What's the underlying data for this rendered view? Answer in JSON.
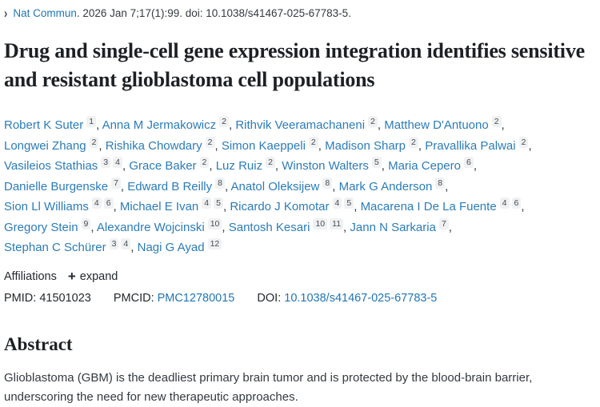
{
  "journal_line": {
    "journal": "Nat Commun",
    "citation": ". 2026 Jan 7;17(1):99. doi: 10.1038/s41467-025-67783-5."
  },
  "icons": {
    "chevron": "›",
    "plus": "+"
  },
  "title": "Drug and single-cell gene expression integration identifies sensitive and resistant glioblastoma cell populations",
  "authors": [
    {
      "name": "Robert K Suter",
      "sups": [
        "1"
      ]
    },
    {
      "name": "Anna M Jermakowicz",
      "sups": [
        "2"
      ]
    },
    {
      "name": "Rithvik Veeramachaneni",
      "sups": [
        "2"
      ]
    },
    {
      "name": "Matthew D'Antuono",
      "sups": [
        "2"
      ]
    },
    {
      "name": "Longwei Zhang",
      "sups": [
        "2"
      ]
    },
    {
      "name": "Rishika Chowdary",
      "sups": [
        "2"
      ]
    },
    {
      "name": "Simon Kaeppeli",
      "sups": [
        "2"
      ]
    },
    {
      "name": "Madison Sharp",
      "sups": [
        "2"
      ]
    },
    {
      "name": "Pravallika Palwai",
      "sups": [
        "2"
      ]
    },
    {
      "name": "Vasileios Stathias",
      "sups": [
        "3",
        "4"
      ]
    },
    {
      "name": "Grace Baker",
      "sups": [
        "2"
      ]
    },
    {
      "name": "Luz Ruiz",
      "sups": [
        "2"
      ]
    },
    {
      "name": "Winston Walters",
      "sups": [
        "5"
      ]
    },
    {
      "name": "Maria Cepero",
      "sups": [
        "6"
      ]
    },
    {
      "name": "Danielle Burgenske",
      "sups": [
        "7"
      ]
    },
    {
      "name": "Edward B Reilly",
      "sups": [
        "8"
      ]
    },
    {
      "name": "Anatol Oleksijew",
      "sups": [
        "8"
      ]
    },
    {
      "name": "Mark G Anderson",
      "sups": [
        "8"
      ]
    },
    {
      "name": "Sion Ll Williams",
      "sups": [
        "4",
        "6"
      ]
    },
    {
      "name": "Michael E Ivan",
      "sups": [
        "4",
        "5"
      ]
    },
    {
      "name": "Ricardo J Komotar",
      "sups": [
        "4",
        "5"
      ]
    },
    {
      "name": "Macarena I De La Fuente",
      "sups": [
        "4",
        "6"
      ]
    },
    {
      "name": "Gregory Stein",
      "sups": [
        "9"
      ]
    },
    {
      "name": "Alexandre Wojcinski",
      "sups": [
        "10"
      ]
    },
    {
      "name": "Santosh Kesari",
      "sups": [
        "10",
        "11"
      ]
    },
    {
      "name": "Jann N Sarkaria",
      "sups": [
        "7"
      ]
    },
    {
      "name": "Stephan C Schürer",
      "sups": [
        "3",
        "4"
      ]
    },
    {
      "name": "Nagi G Ayad",
      "sups": [
        "12"
      ]
    }
  ],
  "affiliations": {
    "label": "Affiliations",
    "expand_label": "expand"
  },
  "ids": {
    "pmid_label": "PMID:",
    "pmid": "41501023",
    "pmcid_label": "PMCID:",
    "pmcid": "PMC12780015",
    "doi_label": "DOI:",
    "doi": "10.1038/s41467-025-67783-5"
  },
  "abstract": {
    "heading": "Abstract",
    "first_line": "Glioblastoma (GBM) is the deadliest primary brain tumor and is protected by the blood-brain barrier, underscoring the need for new therapeutic approaches."
  },
  "colors": {
    "link_blue": "#2176b5",
    "text_dark": "#24292e",
    "badge_bg": "#f0f1f2"
  }
}
